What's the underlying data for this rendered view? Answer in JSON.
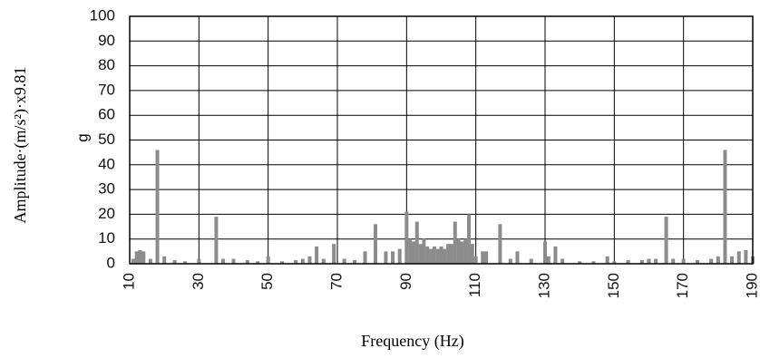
{
  "chart_data": {
    "type": "bar",
    "x_label": "Frequency (Hz)",
    "y_label": "Amplitude·(m/s²)·x9.81",
    "y_unit": "g",
    "color": "#8c8c8c",
    "grid": true,
    "xlim": [
      10,
      190
    ],
    "xticks": [
      10,
      30,
      50,
      70,
      90,
      110,
      130,
      150,
      170,
      190
    ],
    "ylim": [
      0,
      100
    ],
    "yticks": [
      0,
      10,
      20,
      30,
      40,
      50,
      60,
      70,
      80,
      90,
      100
    ],
    "x": [
      11,
      12,
      13,
      14,
      16,
      18,
      20,
      23,
      26,
      30,
      35,
      37,
      40,
      44,
      47,
      50,
      54,
      58,
      60,
      62,
      64,
      66,
      69,
      72,
      75,
      78,
      81,
      84,
      86,
      88,
      90,
      91,
      92,
      93,
      94,
      95,
      96,
      97,
      98,
      99,
      100,
      101,
      102,
      103,
      104,
      105,
      106,
      107,
      108,
      109,
      110,
      112,
      113,
      117,
      120,
      122,
      126,
      130,
      131,
      133,
      135,
      140,
      144,
      148,
      150,
      154,
      158,
      160,
      162,
      165,
      167,
      170,
      174,
      178,
      180,
      182,
      184,
      186,
      188,
      190
    ],
    "values": [
      2,
      5,
      5.5,
      5,
      2,
      46,
      3,
      1.5,
      1,
      2,
      19,
      2,
      2,
      1.5,
      1,
      3,
      1,
      1.5,
      2,
      3,
      7,
      2,
      8,
      2,
      1.5,
      5,
      16,
      5,
      5,
      6,
      21,
      10,
      9,
      17,
      8,
      10,
      7,
      6,
      7,
      6,
      7,
      6,
      8,
      8,
      17,
      10,
      9,
      10,
      20,
      8,
      3,
      5,
      5,
      16,
      2,
      5,
      2,
      9,
      3,
      7,
      2,
      1,
      1,
      3,
      1,
      1.5,
      1.5,
      2,
      2,
      19,
      2,
      2,
      1.5,
      2,
      3,
      46,
      3,
      5,
      5.5,
      3
    ]
  }
}
